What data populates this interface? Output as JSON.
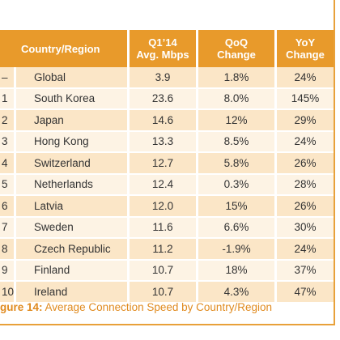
{
  "table": {
    "headers": {
      "country": "Country/Region",
      "speed_line1": "Q1’14",
      "speed_line2": "Avg. Mbps",
      "qoq_line1": "QoQ",
      "qoq_line2": "Change",
      "yoy_line1": "YoY",
      "yoy_line2": "Change"
    },
    "rows": [
      {
        "rank": "–",
        "country": "Global",
        "speed": "3.9",
        "qoq": "1.8%",
        "yoy": "24%"
      },
      {
        "rank": "1",
        "country": "South Korea",
        "speed": "23.6",
        "qoq": "8.0%",
        "yoy": "145%"
      },
      {
        "rank": "2",
        "country": "Japan",
        "speed": "14.6",
        "qoq": "12%",
        "yoy": "29%"
      },
      {
        "rank": "3",
        "country": "Hong Kong",
        "speed": "13.3",
        "qoq": "8.5%",
        "yoy": "24%"
      },
      {
        "rank": "4",
        "country": "Switzerland",
        "speed": "12.7",
        "qoq": "5.8%",
        "yoy": "26%"
      },
      {
        "rank": "5",
        "country": "Netherlands",
        "speed": "12.4",
        "qoq": "0.3%",
        "yoy": "28%"
      },
      {
        "rank": "6",
        "country": "Latvia",
        "speed": "12.0",
        "qoq": "15%",
        "yoy": "26%"
      },
      {
        "rank": "7",
        "country": "Sweden",
        "speed": "11.6",
        "qoq": "6.6%",
        "yoy": "30%"
      },
      {
        "rank": "8",
        "country": "Czech Republic",
        "speed": "11.2",
        "qoq": "-1.9%",
        "yoy": "24%"
      },
      {
        "rank": "9",
        "country": "Finland",
        "speed": "10.7",
        "qoq": "18%",
        "yoy": "37%"
      },
      {
        "rank": "10",
        "country": "Ireland",
        "speed": "10.7",
        "qoq": "4.3%",
        "yoy": "47%"
      }
    ]
  },
  "caption": {
    "label": "gure 14:",
    "text": " Average Connection Speed by Country/Region"
  },
  "colors": {
    "header_bg": "#e89a2b",
    "row_odd": "#fbe6c7",
    "row_even": "#fdf3e4",
    "caption": "#e08a1e"
  }
}
